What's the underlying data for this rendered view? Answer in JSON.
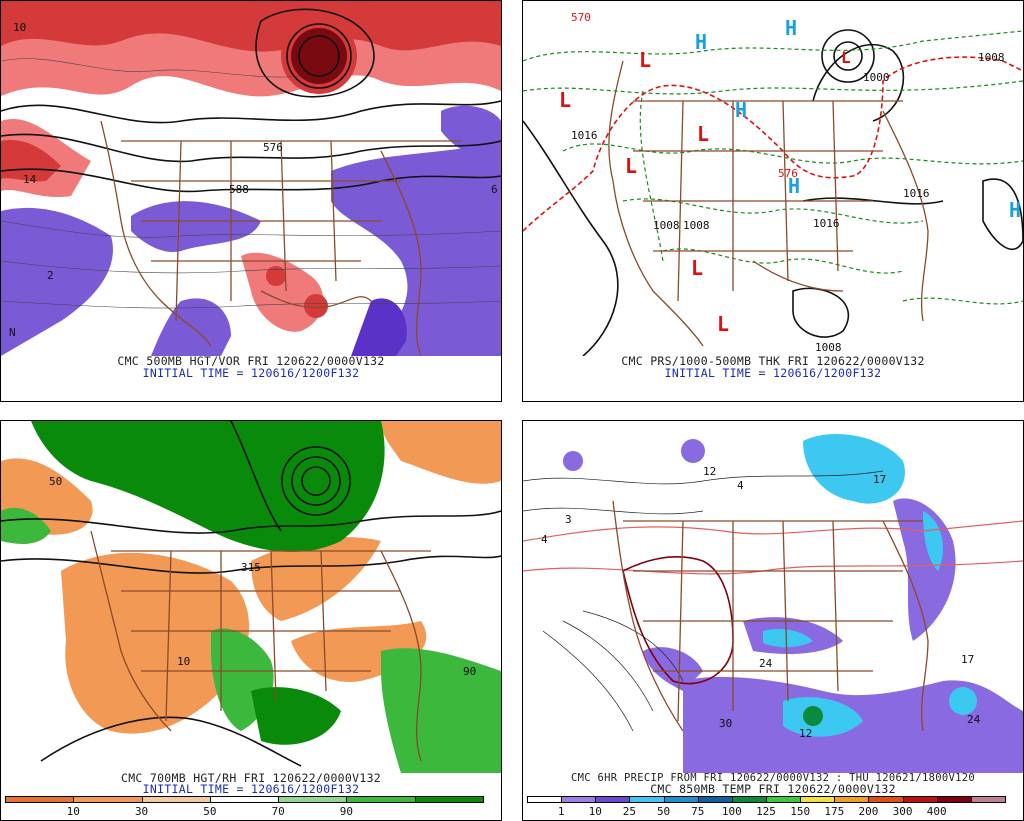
{
  "colors": {
    "vor_pos_dark": "#7a0a12",
    "vor_pos_mid": "#d43a3a",
    "vor_pos_light": "#f07a7a",
    "vor_neg": "#7b5ad6",
    "vor_neg_dark": "#5a32c8",
    "geo": "#8a4a2a",
    "contour": "#111111",
    "thk_green": "#1a8a1a",
    "thk_red": "#e01010",
    "high_blue": "#1aa0e0",
    "low_red": "#e01010",
    "rh_dry": "#f29a55",
    "rh_moist": "#0a8a0a",
    "rh_moist_light": "#3cb83c",
    "precip_purple": "#8a6ae0",
    "precip_cyan": "#3cc8f0",
    "temp_red": "#e06060"
  },
  "panels": {
    "tl": {
      "caption": "CMC 500MB HGT/VOR FRI 120622/0000V132",
      "subcaption": "INITIAL TIME = 120616/1200F132",
      "labels": [
        {
          "t": "10",
          "n": "vort-10"
        },
        {
          "t": "14",
          "n": "vort-14"
        },
        {
          "t": "588",
          "n": "height-588"
        },
        {
          "t": "576",
          "n": "height-576"
        },
        {
          "t": "2",
          "n": "vort-2"
        },
        {
          "t": "6",
          "n": "vort-6"
        },
        {
          "t": "N",
          "n": "vort-n"
        }
      ]
    },
    "tr": {
      "caption": "CMC PRS/1000-500MB THK FRI 120622/0000V132",
      "subcaption": "INITIAL TIME = 120616/1200F132",
      "highs": [
        "H",
        "H",
        "H",
        "H",
        "H"
      ],
      "lows": [
        "L",
        "L",
        "L",
        "L",
        "L",
        "L",
        "L"
      ],
      "isobars": [
        "1016",
        "1008",
        "1000",
        "1008",
        "1016",
        "1008",
        "1008",
        "1016"
      ],
      "thickness": [
        "570",
        "576"
      ]
    },
    "bl": {
      "caption": "CMC 700MB HGT/RH FRI 120622/0000V132",
      "subcaption": "INITIAL TIME = 120616/1200F132",
      "legend": {
        "colors": [
          "#e6742e",
          "#f29a55",
          "#f5c9a0",
          "#ffffff",
          "#8fd88f",
          "#3cb83c",
          "#0a8a0a"
        ],
        "labels": [
          "10",
          "30",
          "50",
          "70",
          "90"
        ]
      },
      "labels": [
        "50",
        "10",
        "90",
        "315"
      ]
    },
    "br": {
      "caption": "CMC 6HR PRECIP FROM FRI 120622/0000V132 : THU 120621/1800V120",
      "subcaption": "CMC 850MB TEMP FRI 120622/0000V132",
      "legend": {
        "colors": [
          "#ffffff",
          "#9b7fe6",
          "#6a4ad0",
          "#3cc8f0",
          "#1e90d0",
          "#1060a0",
          "#0a8a3c",
          "#3cc83c",
          "#f0e040",
          "#f0a020",
          "#e05010",
          "#c01010",
          "#800010",
          "#c08090"
        ],
        "labels": [
          "1",
          "10",
          "25",
          "50",
          "75",
          "100",
          "125",
          "150",
          "175",
          "200",
          "300",
          "400"
        ]
      },
      "labels": [
        "4",
        "12",
        "3",
        "4",
        "17",
        "30",
        "12",
        "24",
        "17",
        "24"
      ]
    }
  }
}
